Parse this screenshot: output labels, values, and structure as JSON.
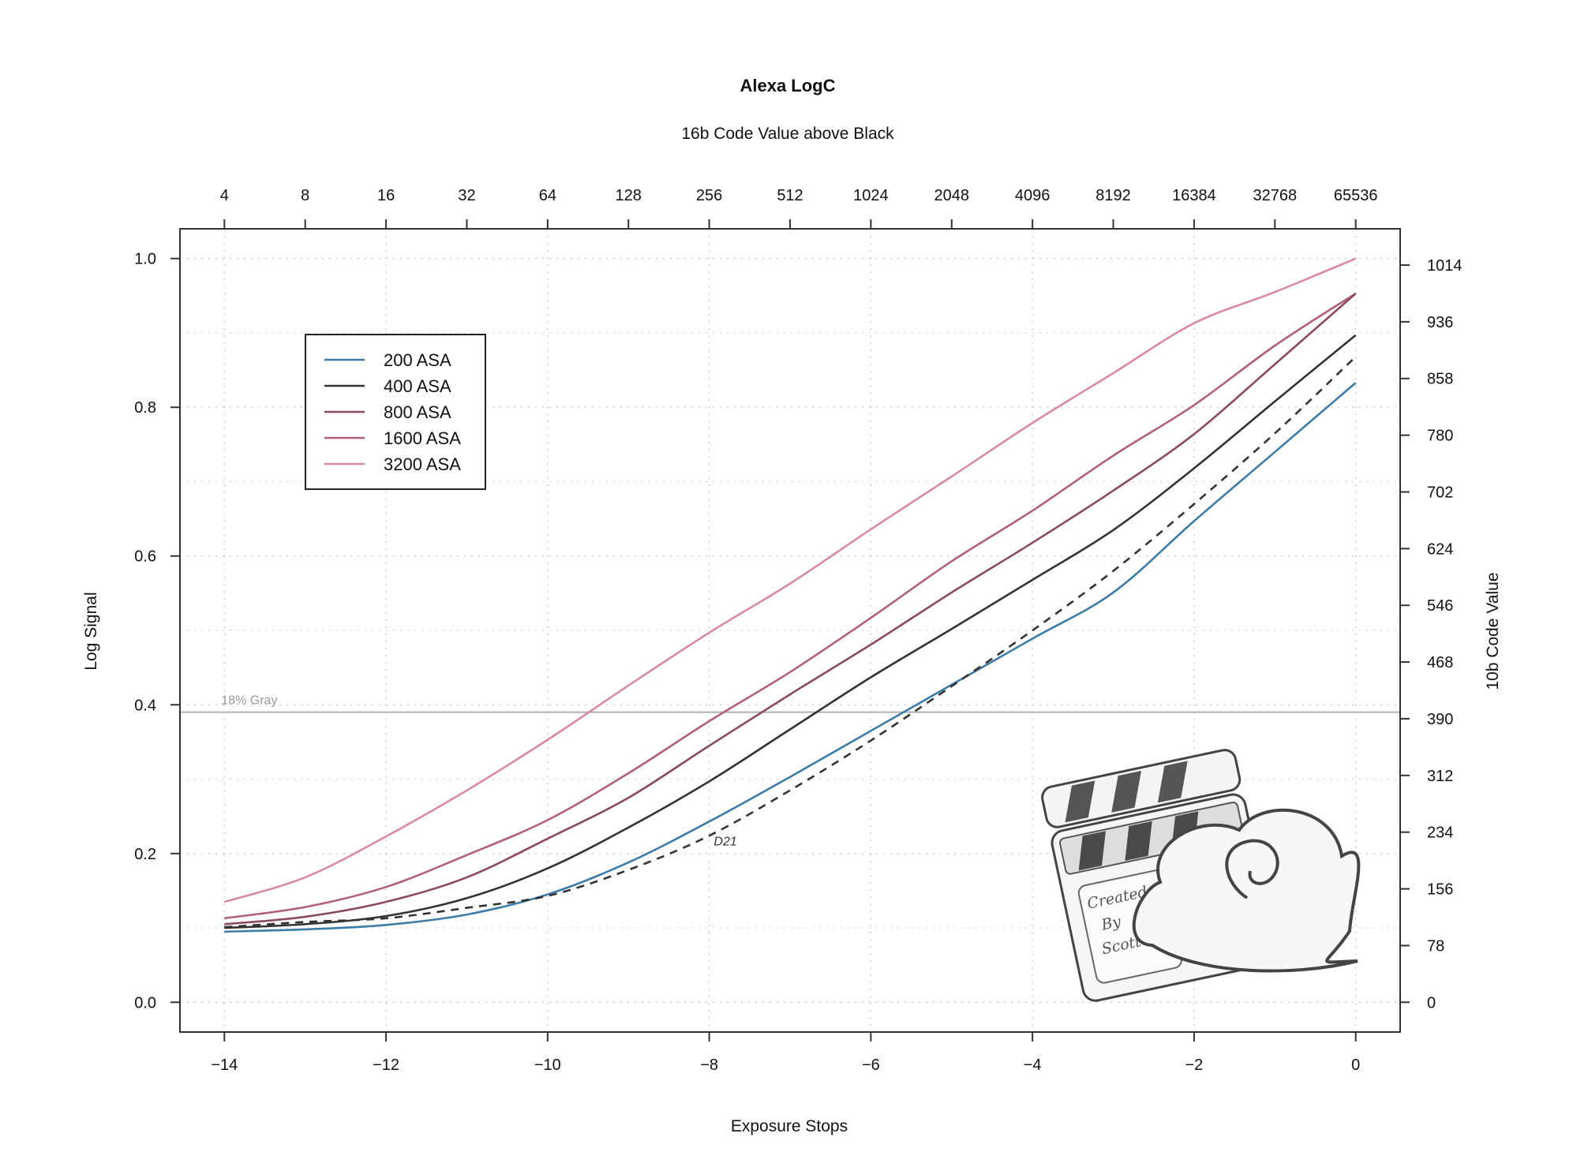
{
  "chart_data": {
    "type": "line",
    "title": "Alexa LogC",
    "top_axis_title": "16b Code Value above Black",
    "top_tick_labels": [
      "4",
      "8",
      "16",
      "32",
      "64",
      "128",
      "256",
      "512",
      "1024",
      "2048",
      "4096",
      "8192",
      "16384",
      "32768",
      "65536"
    ],
    "xlabel": "Exposure Stops",
    "ylabel": "Log Signal",
    "right_ylabel": "10b Code Value",
    "x_ticks": [
      -14,
      -12,
      -10,
      -8,
      -6,
      -4,
      -2,
      0
    ],
    "x_tick_labels": [
      "−14",
      "−12",
      "−10",
      "−8",
      "−6",
      "−4",
      "−2",
      "0"
    ],
    "y_ticks": [
      0.0,
      0.2,
      0.4,
      0.6,
      0.8,
      1.0
    ],
    "y_tick_labels": [
      "0.0",
      "0.2",
      "0.4",
      "0.6",
      "0.8",
      "1.0"
    ],
    "right_ticks": [
      0,
      78,
      156,
      234,
      312,
      390,
      468,
      546,
      624,
      702,
      780,
      858,
      936,
      1014
    ],
    "xlim": [
      -14.55,
      0.55
    ],
    "ylim": [
      -0.04,
      1.04
    ],
    "grid": true,
    "legend_position": "top-left",
    "reference_line": {
      "y": 0.39,
      "label": "18% Gray"
    },
    "x": [
      -14,
      -13,
      -12,
      -11,
      -10,
      -9,
      -8,
      -7,
      -6,
      -5,
      -4,
      -3,
      -2,
      -1,
      0
    ],
    "series": [
      {
        "name": "200 ASA",
        "color": "#3e7ca8",
        "values": [
          0.095,
          0.098,
          0.104,
          0.118,
          0.145,
          0.188,
          0.243,
          0.303,
          0.365,
          0.427,
          0.489,
          0.551,
          0.647,
          0.74,
          0.833
        ]
      },
      {
        "name": "400 ASA",
        "color": "#333333",
        "values": [
          0.1,
          0.105,
          0.116,
          0.14,
          0.18,
          0.235,
          0.297,
          0.367,
          0.437,
          0.502,
          0.568,
          0.635,
          0.718,
          0.808,
          0.897
        ]
      },
      {
        "name": "800 ASA",
        "color": "#8a4a60",
        "values": [
          0.105,
          0.115,
          0.135,
          0.168,
          0.22,
          0.275,
          0.345,
          0.414,
          0.481,
          0.551,
          0.618,
          0.688,
          0.764,
          0.858,
          0.953
        ]
      },
      {
        "name": "1600 ASA",
        "color": "#b0607a",
        "values": [
          0.113,
          0.128,
          0.155,
          0.198,
          0.245,
          0.308,
          0.378,
          0.444,
          0.517,
          0.593,
          0.661,
          0.735,
          0.803,
          0.883,
          0.953
        ]
      },
      {
        "name": "3200 ASA",
        "color": "#d98ba0",
        "values": [
          0.135,
          0.168,
          0.223,
          0.285,
          0.353,
          0.426,
          0.497,
          0.563,
          0.636,
          0.707,
          0.779,
          0.846,
          0.913,
          0.955,
          1.0
        ]
      }
    ],
    "reference_curve": {
      "name": "D21",
      "style": "dashed",
      "color": "#333333",
      "label_x": -7.8,
      "x": [
        -14,
        -13,
        -12,
        -11,
        -10,
        -9,
        -8,
        -7,
        -6,
        -5,
        -4,
        -3,
        -2,
        -1,
        0
      ],
      "values": [
        0.101,
        0.108,
        0.113,
        0.127,
        0.143,
        0.178,
        0.224,
        0.285,
        0.352,
        0.425,
        0.5,
        0.58,
        0.67,
        0.765,
        0.868
      ]
    }
  },
  "logo": {
    "text_lines": [
      "Created",
      "By",
      "Scott"
    ]
  }
}
